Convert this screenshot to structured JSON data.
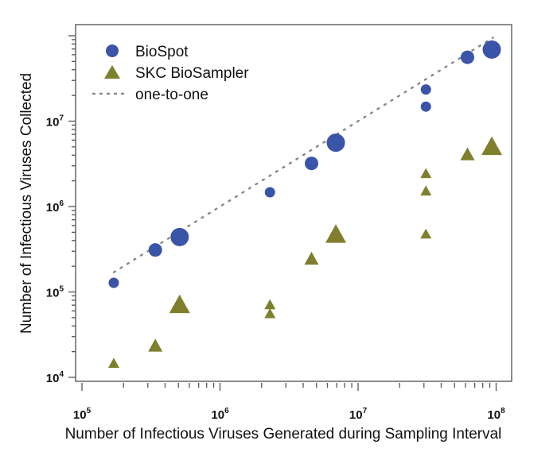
{
  "chart_data": {
    "type": "scatter",
    "title": "",
    "xlabel": "Number of Infectious Viruses Generated during Sampling Interval",
    "ylabel": "Number of Infectious Viruses Collected",
    "xscale": "log",
    "yscale": "log",
    "xlim": [
      100000,
      130000000
    ],
    "ylim": [
      10000,
      110000000
    ],
    "x_ticks": [
      {
        "value": 100000,
        "base": "10",
        "exp": "5"
      },
      {
        "value": 1000000,
        "base": "10",
        "exp": "6"
      },
      {
        "value": 10000000,
        "base": "10",
        "exp": "7"
      },
      {
        "value": 100000000,
        "base": "10",
        "exp": "8"
      }
    ],
    "y_ticks": [
      {
        "value": 10000,
        "base": "10",
        "exp": "4"
      },
      {
        "value": 100000,
        "base": "10",
        "exp": "5"
      },
      {
        "value": 1000000,
        "base": "10",
        "exp": "6"
      },
      {
        "value": 10000000,
        "base": "10",
        "exp": "7"
      }
    ],
    "grid": false,
    "legend_position": "top-left",
    "legend": [
      {
        "label": "BioSpot",
        "marker": "circle",
        "color": "#3a54a8"
      },
      {
        "label": "SKC BioSampler",
        "marker": "triangle",
        "color": "#7f7f2e"
      },
      {
        "label": "one-to-one",
        "marker": "dotted-line",
        "color": "#888888"
      }
    ],
    "reference_line": {
      "name": "one-to-one",
      "x": [
        170000,
        95000000
      ],
      "y": [
        170000,
        95000000
      ],
      "style": "dotted",
      "color": "#888888"
    },
    "series": [
      {
        "name": "BioSpot",
        "marker": "circle",
        "color": "#3a54a8",
        "points": [
          {
            "x": 170000,
            "y": 128000,
            "size": "small"
          },
          {
            "x": 340000,
            "y": 310000,
            "size": "medium"
          },
          {
            "x": 510000,
            "y": 440000,
            "size": "large"
          },
          {
            "x": 2300000,
            "y": 1470000,
            "size": "small"
          },
          {
            "x": 4600000,
            "y": 3200000,
            "size": "medium"
          },
          {
            "x": 6900000,
            "y": 5600000,
            "size": "large"
          },
          {
            "x": 31000000,
            "y": 23500000,
            "size": "small"
          },
          {
            "x": 31000000,
            "y": 14800000,
            "size": "small"
          },
          {
            "x": 62000000,
            "y": 56000000,
            "size": "medium"
          },
          {
            "x": 93000000,
            "y": 69000000,
            "size": "large"
          }
        ]
      },
      {
        "name": "SKC BioSampler",
        "marker": "triangle",
        "color": "#7f7f2e",
        "points": [
          {
            "x": 170000,
            "y": 14400,
            "size": "small"
          },
          {
            "x": 340000,
            "y": 23000,
            "size": "medium"
          },
          {
            "x": 510000,
            "y": 69000,
            "size": "large"
          },
          {
            "x": 2300000,
            "y": 70000,
            "size": "small"
          },
          {
            "x": 2300000,
            "y": 55000,
            "size": "small"
          },
          {
            "x": 4600000,
            "y": 240000,
            "size": "medium"
          },
          {
            "x": 6900000,
            "y": 460000,
            "size": "large"
          },
          {
            "x": 31000000,
            "y": 2400000,
            "size": "small"
          },
          {
            "x": 31000000,
            "y": 1500000,
            "size": "small"
          },
          {
            "x": 31000000,
            "y": 470000,
            "size": "small"
          },
          {
            "x": 62000000,
            "y": 4000000,
            "size": "medium"
          },
          {
            "x": 93000000,
            "y": 4900000,
            "size": "large"
          }
        ]
      }
    ]
  }
}
